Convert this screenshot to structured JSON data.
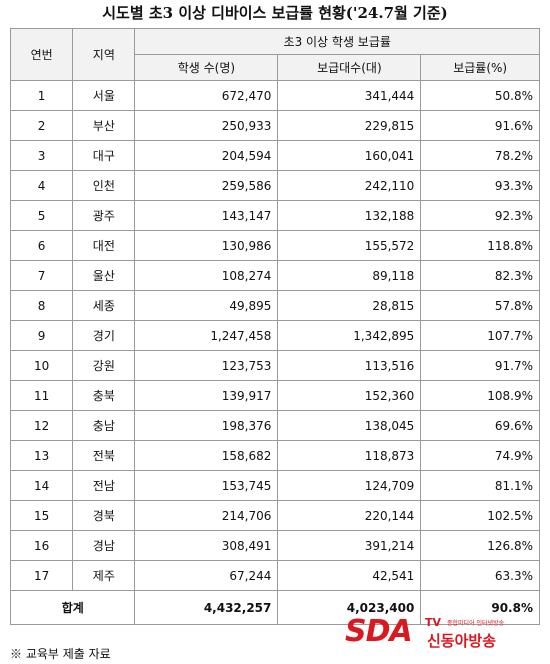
{
  "header": {
    "title": "시도별 초3 이상 디바이스 보급률 현황('24.7월 기준)"
  },
  "table": {
    "columns": [
      "연번",
      "지역",
      "초3 이상 학생 보급률"
    ],
    "subcolumns": [
      "학생 수(명)",
      "보급대수(대)",
      "보급률(%)"
    ],
    "rows": [
      [
        "1",
        "서울",
        "672,470",
        "341,444",
        "50.8%"
      ],
      [
        "2",
        "부산",
        "250,933",
        "229,815",
        "91.6%"
      ],
      [
        "3",
        "대구",
        "204,594",
        "160,041",
        "78.2%"
      ],
      [
        "4",
        "인천",
        "259,586",
        "242,110",
        "93.3%"
      ],
      [
        "5",
        "광주",
        "143,147",
        "132,188",
        "92.3%"
      ],
      [
        "6",
        "대전",
        "130,986",
        "155,572",
        "118.8%"
      ],
      [
        "7",
        "울산",
        "108,274",
        "89,118",
        "82.3%"
      ],
      [
        "8",
        "세종",
        "49,895",
        "28,815",
        "57.8%"
      ],
      [
        "9",
        "경기",
        "1,247,458",
        "1,342,895",
        "107.7%"
      ],
      [
        "10",
        "강원",
        "123,753",
        "113,516",
        "91.7%"
      ],
      [
        "11",
        "충북",
        "139,917",
        "152,360",
        "108.9%"
      ],
      [
        "12",
        "충남",
        "198,376",
        "138,045",
        "69.6%"
      ],
      [
        "13",
        "전북",
        "158,682",
        "118,873",
        "74.9%"
      ],
      [
        "14",
        "전남",
        "153,745",
        "124,709",
        "81.1%"
      ],
      [
        "15",
        "경북",
        "214,706",
        "220,144",
        "102.5%"
      ],
      [
        "16",
        "경남",
        "308,491",
        "391,214",
        "126.8%"
      ],
      [
        "17",
        "제주",
        "67,244",
        "42,541",
        "63.3%"
      ]
    ],
    "total": [
      "합계",
      "4,432,257",
      "4,023,400",
      "90.8%"
    ]
  },
  "footnote": "※ 교육부 제출 자료",
  "logo": {
    "mark": "SDA",
    "tv": "TV",
    "tagline": "종합미디어 인터넷방송",
    "name": "신동아방송"
  }
}
